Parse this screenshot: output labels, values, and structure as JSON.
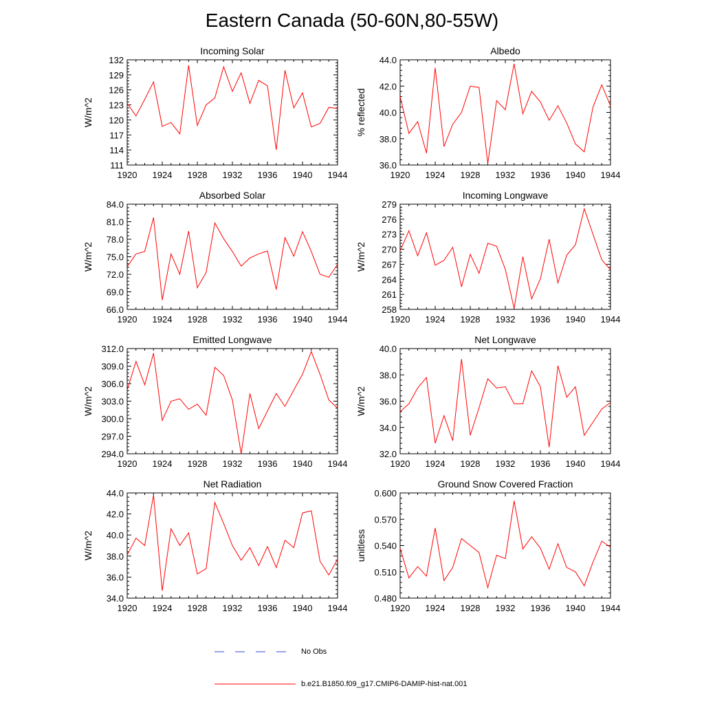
{
  "figure": {
    "title": "Eastern Canada (50-60N,80-55W)"
  },
  "legend": [
    {
      "label": "No Obs",
      "color": "#3344cc",
      "dashed": true
    },
    {
      "label": "b.e21.B1850.f09_g17.CMIP6-DAMIP-hist-nat.001",
      "color": "#ff0000",
      "dashed": false
    }
  ],
  "chart_data": [
    {
      "type": "line",
      "title": "Incoming Solar",
      "ylabel": "W/m^2",
      "xlim": [
        1920,
        1944
      ],
      "ylim": [
        111,
        132
      ],
      "yticks": [
        111,
        114,
        117,
        120,
        123,
        126,
        129,
        132
      ],
      "ytick_labels": [
        "111",
        "114",
        "117",
        "120",
        "123",
        "126",
        "129",
        "132"
      ],
      "xticks": [
        1920,
        1924,
        1928,
        1932,
        1936,
        1940,
        1944
      ],
      "x": [
        1920,
        1921,
        1922,
        1923,
        1924,
        1925,
        1926,
        1927,
        1928,
        1929,
        1930,
        1931,
        1932,
        1933,
        1934,
        1935,
        1936,
        1937,
        1938,
        1939,
        1940,
        1941,
        1942,
        1943,
        1944
      ],
      "series": [
        {
          "color": "#ff0000",
          "values": [
            123.3,
            120.8,
            124.1,
            127.6,
            118.7,
            119.5,
            117.2,
            130.9,
            118.9,
            123.0,
            124.4,
            130.6,
            125.7,
            129.4,
            123.3,
            127.9,
            126.8,
            114.0,
            129.9,
            122.4,
            125.4,
            118.6,
            119.3,
            122.5,
            122.3
          ]
        }
      ]
    },
    {
      "type": "line",
      "title": "Albedo",
      "ylabel": "% reflected",
      "xlim": [
        1920,
        1944
      ],
      "ylim": [
        36.0,
        44.0
      ],
      "yticks": [
        36,
        38,
        40,
        42,
        44
      ],
      "ytick_labels": [
        "36.0",
        "38.0",
        "40.0",
        "42.0",
        "44.0"
      ],
      "xticks": [
        1920,
        1924,
        1928,
        1932,
        1936,
        1940,
        1944
      ],
      "x": [
        1920,
        1921,
        1922,
        1923,
        1924,
        1925,
        1926,
        1927,
        1928,
        1929,
        1930,
        1931,
        1932,
        1933,
        1934,
        1935,
        1936,
        1937,
        1938,
        1939,
        1940,
        1941,
        1942,
        1943,
        1944
      ],
      "series": [
        {
          "color": "#ff0000",
          "values": [
            41.2,
            38.4,
            39.3,
            36.9,
            43.4,
            37.4,
            39.1,
            40.0,
            42.0,
            41.9,
            36.1,
            40.9,
            40.2,
            43.7,
            39.9,
            41.6,
            40.8,
            39.4,
            40.5,
            39.2,
            37.6,
            37.0,
            40.4,
            42.1,
            40.5
          ]
        }
      ]
    },
    {
      "type": "line",
      "title": "Absorbed Solar",
      "ylabel": "W/m^2",
      "xlim": [
        1920,
        1944
      ],
      "ylim": [
        66.0,
        84.0
      ],
      "yticks": [
        66,
        69,
        72,
        75,
        78,
        81,
        84
      ],
      "ytick_labels": [
        "66.0",
        "69.0",
        "72.0",
        "75.0",
        "78.0",
        "81.0",
        "84.0"
      ],
      "xticks": [
        1920,
        1924,
        1928,
        1932,
        1936,
        1940,
        1944
      ],
      "x": [
        1920,
        1921,
        1922,
        1923,
        1924,
        1925,
        1926,
        1927,
        1928,
        1929,
        1930,
        1931,
        1932,
        1933,
        1934,
        1935,
        1936,
        1937,
        1938,
        1939,
        1940,
        1941,
        1942,
        1943,
        1944
      ],
      "series": [
        {
          "color": "#ff0000",
          "values": [
            73.3,
            75.5,
            75.9,
            81.7,
            67.6,
            75.5,
            72.0,
            79.4,
            69.7,
            72.3,
            80.8,
            78.1,
            75.9,
            73.4,
            74.8,
            75.5,
            76.0,
            69.4,
            78.3,
            75.1,
            79.3,
            75.9,
            72.0,
            71.5,
            73.7
          ]
        }
      ]
    },
    {
      "type": "line",
      "title": "Incoming Longwave",
      "ylabel": "W/m^2",
      "xlim": [
        1920,
        1944
      ],
      "ylim": [
        258,
        279
      ],
      "yticks": [
        258,
        261,
        264,
        267,
        270,
        273,
        276,
        279
      ],
      "ytick_labels": [
        "258",
        "261",
        "264",
        "267",
        "270",
        "273",
        "276",
        "279"
      ],
      "xticks": [
        1920,
        1924,
        1928,
        1932,
        1936,
        1940,
        1944
      ],
      "x": [
        1920,
        1921,
        1922,
        1923,
        1924,
        1925,
        1926,
        1927,
        1928,
        1929,
        1930,
        1931,
        1932,
        1933,
        1934,
        1935,
        1936,
        1937,
        1938,
        1939,
        1940,
        1941,
        1942,
        1943,
        1944
      ],
      "series": [
        {
          "color": "#ff0000",
          "values": [
            269.7,
            273.7,
            268.7,
            273.3,
            266.8,
            267.8,
            270.4,
            262.5,
            269.0,
            265.2,
            271.2,
            270.6,
            266.0,
            258.2,
            268.5,
            260.1,
            264.1,
            272.0,
            263.3,
            268.8,
            270.9,
            278.1,
            273.0,
            267.9,
            265.9
          ]
        }
      ]
    },
    {
      "type": "line",
      "title": "Emitted Longwave",
      "ylabel": "W/m^2",
      "xlim": [
        1920,
        1944
      ],
      "ylim": [
        294.0,
        312.0
      ],
      "yticks": [
        294,
        297,
        300,
        303,
        306,
        309,
        312
      ],
      "ytick_labels": [
        "294.0",
        "297.0",
        "300.0",
        "303.0",
        "306.0",
        "309.0",
        "312.0"
      ],
      "xticks": [
        1920,
        1924,
        1928,
        1932,
        1936,
        1940,
        1944
      ],
      "x": [
        1920,
        1921,
        1922,
        1923,
        1924,
        1925,
        1926,
        1927,
        1928,
        1929,
        1930,
        1931,
        1932,
        1933,
        1934,
        1935,
        1936,
        1937,
        1938,
        1939,
        1940,
        1941,
        1942,
        1943,
        1944
      ],
      "series": [
        {
          "color": "#ff0000",
          "values": [
            304.9,
            309.8,
            305.8,
            311.2,
            299.7,
            303.0,
            303.4,
            301.6,
            302.5,
            300.6,
            308.8,
            307.4,
            303.2,
            294.0,
            304.3,
            298.3,
            301.3,
            304.3,
            302.1,
            304.9,
            307.6,
            311.5,
            307.6,
            303.2,
            301.8
          ]
        }
      ]
    },
    {
      "type": "line",
      "title": "Net Longwave",
      "ylabel": "W/m^2",
      "xlim": [
        1920,
        1944
      ],
      "ylim": [
        32.0,
        40.0
      ],
      "yticks": [
        32,
        34,
        36,
        38,
        40
      ],
      "ytick_labels": [
        "32.0",
        "34.0",
        "36.0",
        "38.0",
        "40.0"
      ],
      "xticks": [
        1920,
        1924,
        1928,
        1932,
        1936,
        1940,
        1944
      ],
      "x": [
        1920,
        1921,
        1922,
        1923,
        1924,
        1925,
        1926,
        1927,
        1928,
        1929,
        1930,
        1931,
        1932,
        1933,
        1934,
        1935,
        1936,
        1937,
        1938,
        1939,
        1940,
        1941,
        1942,
        1943,
        1944
      ],
      "series": [
        {
          "color": "#ff0000",
          "values": [
            35.2,
            35.8,
            37.0,
            37.8,
            32.8,
            34.9,
            33.0,
            39.2,
            33.4,
            35.5,
            37.7,
            37.0,
            37.1,
            35.8,
            35.8,
            38.3,
            37.1,
            32.5,
            38.7,
            36.3,
            37.1,
            33.4,
            34.4,
            35.4,
            35.9
          ]
        }
      ]
    },
    {
      "type": "line",
      "title": "Net Radiation",
      "ylabel": "W/m^2",
      "xlim": [
        1920,
        1944
      ],
      "ylim": [
        34.0,
        44.0
      ],
      "yticks": [
        34,
        36,
        38,
        40,
        42,
        44
      ],
      "ytick_labels": [
        "34.0",
        "36.0",
        "38.0",
        "40.0",
        "42.0",
        "44.0"
      ],
      "xticks": [
        1920,
        1924,
        1928,
        1932,
        1936,
        1940,
        1944
      ],
      "x": [
        1920,
        1921,
        1922,
        1923,
        1924,
        1925,
        1926,
        1927,
        1928,
        1929,
        1930,
        1931,
        1932,
        1933,
        1934,
        1935,
        1936,
        1937,
        1938,
        1939,
        1940,
        1941,
        1942,
        1943,
        1944
      ],
      "series": [
        {
          "color": "#ff0000",
          "values": [
            38.1,
            39.7,
            39.0,
            43.8,
            34.7,
            40.6,
            39.0,
            40.2,
            36.3,
            36.8,
            43.1,
            41.1,
            39.0,
            37.6,
            38.8,
            37.1,
            38.9,
            36.9,
            39.5,
            38.8,
            42.1,
            42.3,
            37.5,
            36.2,
            37.7
          ]
        }
      ]
    },
    {
      "type": "line",
      "title": "Ground Snow Covered Fraction",
      "ylabel": "unitless",
      "xlim": [
        1920,
        1944
      ],
      "ylim": [
        0.48,
        0.6
      ],
      "yticks": [
        0.48,
        0.51,
        0.54,
        0.57,
        0.6
      ],
      "ytick_labels": [
        "0.480",
        "0.510",
        "0.540",
        "0.570",
        "0.600"
      ],
      "xticks": [
        1920,
        1924,
        1928,
        1932,
        1936,
        1940,
        1944
      ],
      "x": [
        1920,
        1921,
        1922,
        1923,
        1924,
        1925,
        1926,
        1927,
        1928,
        1929,
        1930,
        1931,
        1932,
        1933,
        1934,
        1935,
        1936,
        1937,
        1938,
        1939,
        1940,
        1941,
        1942,
        1943,
        1944
      ],
      "series": [
        {
          "color": "#ff0000",
          "values": [
            0.537,
            0.503,
            0.516,
            0.505,
            0.56,
            0.5,
            0.515,
            0.548,
            0.54,
            0.532,
            0.492,
            0.529,
            0.525,
            0.591,
            0.536,
            0.55,
            0.537,
            0.513,
            0.542,
            0.515,
            0.51,
            0.494,
            0.521,
            0.545,
            0.538
          ]
        }
      ]
    }
  ]
}
